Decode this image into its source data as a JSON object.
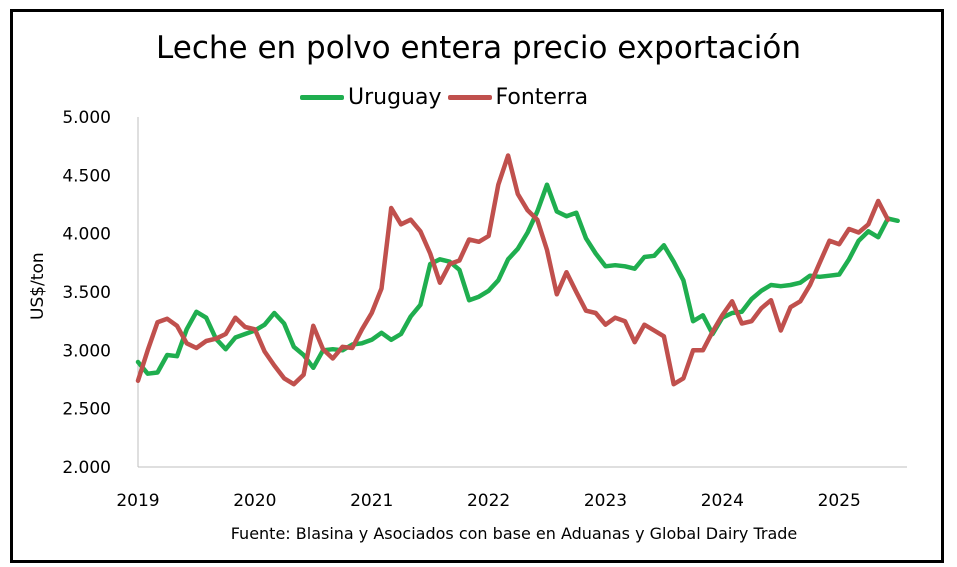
{
  "chart_data": {
    "type": "line",
    "title": "Leche en polvo entera precio exportación",
    "ylabel": "US$/ton",
    "xlabel": "",
    "source": "Fuente: Blasina y Asociados con base en Aduanas y Global Dairy Trade",
    "ylim": [
      2000,
      5000
    ],
    "yticks": [
      2000,
      2500,
      3000,
      3500,
      4000,
      4500,
      5000
    ],
    "ytick_labels": [
      "2.000",
      "2.500",
      "3.000",
      "3.500",
      "4.000",
      "4.500",
      "5.000"
    ],
    "xlim": [
      2019.0,
      2025.58
    ],
    "xticks": [
      2019,
      2020,
      2021,
      2022,
      2023,
      2024,
      2025
    ],
    "xtick_labels": [
      "2019",
      "2020",
      "2021",
      "2022",
      "2023",
      "2024",
      "2025"
    ],
    "grid": false,
    "legend_position": "top-center",
    "x_start": "2019-01",
    "x_step": "monthly",
    "series": [
      {
        "name": "Uruguay",
        "color": "#1fae4f",
        "values": [
          2900,
          2800,
          2810,
          2960,
          2950,
          3180,
          3330,
          3280,
          3100,
          3010,
          3110,
          3140,
          3170,
          3220,
          3320,
          3230,
          3030,
          2960,
          2850,
          3000,
          3010,
          3000,
          3050,
          3060,
          3090,
          3150,
          3090,
          3140,
          3290,
          3390,
          3740,
          3780,
          3760,
          3690,
          3430,
          3460,
          3510,
          3600,
          3780,
          3870,
          4010,
          4190,
          4420,
          4190,
          4150,
          4180,
          3960,
          3830,
          3720,
          3730,
          3720,
          3700,
          3800,
          3810,
          3900,
          3760,
          3600,
          3250,
          3300,
          3140,
          3280,
          3320,
          3330,
          3440,
          3510,
          3560,
          3550,
          3560,
          3580,
          3640,
          3630,
          3640,
          3650,
          3780,
          3940,
          4020,
          3970,
          4130,
          4110
        ]
      },
      {
        "name": "Fonterra",
        "color": "#c0504d",
        "values": [
          2740,
          3000,
          3240,
          3270,
          3210,
          3060,
          3020,
          3080,
          3100,
          3140,
          3280,
          3200,
          3180,
          2990,
          2870,
          2760,
          2710,
          2790,
          3210,
          3010,
          2930,
          3030,
          3020,
          3180,
          3320,
          3530,
          4220,
          4080,
          4120,
          4020,
          3830,
          3580,
          3740,
          3770,
          3950,
          3930,
          3980,
          4420,
          4670,
          4340,
          4200,
          4120,
          3860,
          3480,
          3670,
          3500,
          3340,
          3320,
          3220,
          3280,
          3250,
          3070,
          3220,
          3170,
          3120,
          2710,
          2760,
          3000,
          3000,
          3160,
          3300,
          3420,
          3230,
          3250,
          3360,
          3430,
          3170,
          3370,
          3420,
          3560,
          3750,
          3940,
          3910,
          4040,
          4010,
          4080,
          4280,
          4120
        ]
      }
    ]
  }
}
